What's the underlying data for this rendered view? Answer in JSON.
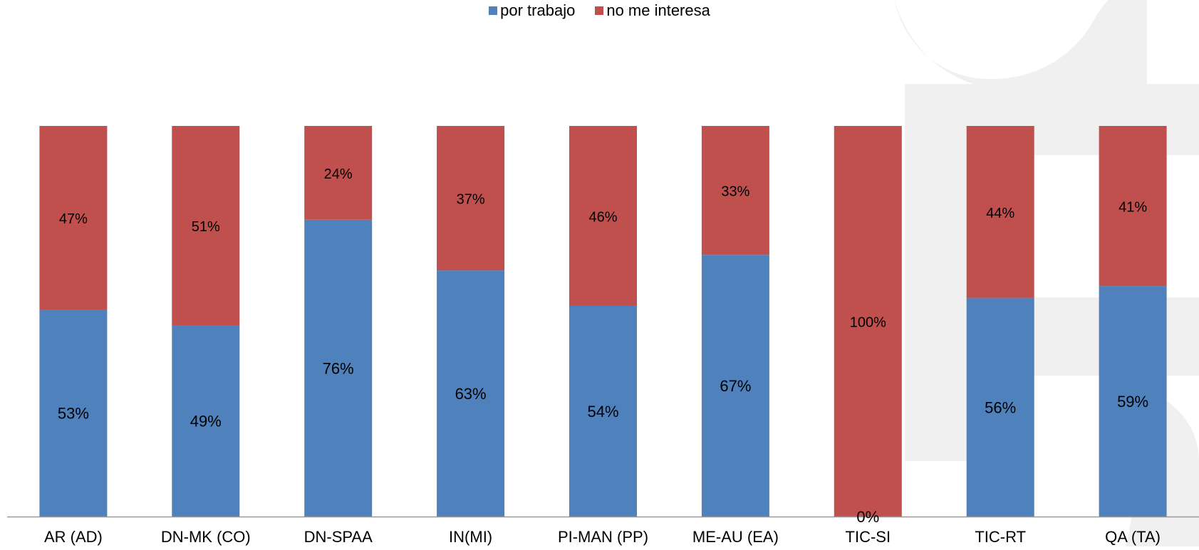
{
  "colors": {
    "series_1": "#4f81bd",
    "series_2": "#c0504d",
    "watermark": "#f0f0f0",
    "axis": "#999999"
  },
  "chart_data": {
    "type": "bar",
    "stacked": true,
    "percent_stacked": true,
    "legend_position": "top",
    "categories": [
      "AR (AD)",
      "DN-MK (CO)",
      "DN-SPAA",
      "IN(MI)",
      "PI-MAN (PP)",
      "ME-AU (EA)",
      "TIC-SI",
      "TIC-RT",
      "QA  (TA)"
    ],
    "series": [
      {
        "name": "por trabajo",
        "values": [
          53,
          49,
          76,
          63,
          54,
          67,
          0,
          56,
          59
        ],
        "labels": [
          "53%",
          "49%",
          "76%",
          "63%",
          "54%",
          "67%",
          "0%",
          "56%",
          "59%"
        ]
      },
      {
        "name": "no me interesa",
        "values": [
          47,
          51,
          24,
          37,
          46,
          33,
          100,
          44,
          41
        ],
        "labels": [
          "47%",
          "51%",
          "24%",
          "37%",
          "46%",
          "33%",
          "100%",
          "44%",
          "41%"
        ]
      }
    ],
    "ylim": [
      0,
      100
    ]
  }
}
